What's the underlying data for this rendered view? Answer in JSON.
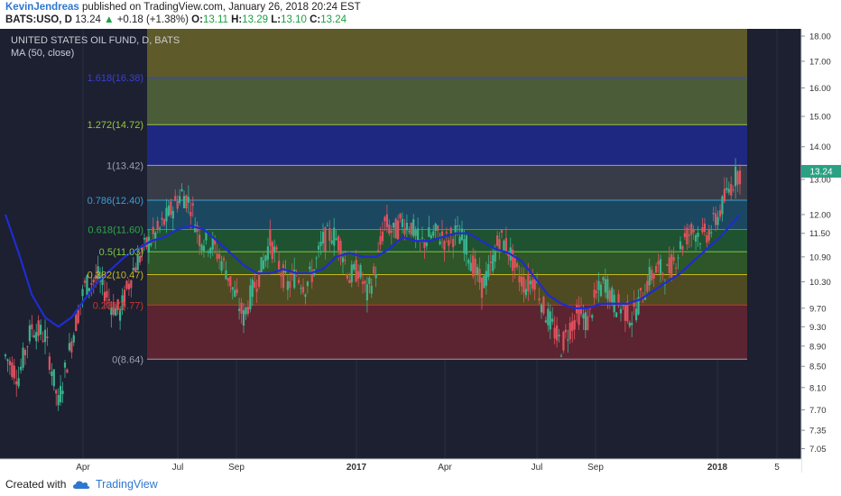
{
  "header": {
    "author": "KevinJendreas",
    "published": "published on TradingView.com, January 26, 2018 20:24 EST",
    "symbol": "BATS:USO, D",
    "last": "13.24",
    "change": "+0.18 (+1.38%)",
    "open_label": "O:",
    "open": "13.11",
    "high_label": "H:",
    "high": "13.29",
    "low_label": "L:",
    "low": "13.10",
    "close_label": "C:",
    "close": "13.24"
  },
  "footer": {
    "created": "Created with",
    "brand": "TradingView"
  },
  "colors": {
    "background": "#1c2030",
    "up_candle": "#3bb38f",
    "down_candle": "#e0525e",
    "ma_line": "#1f2ccf",
    "price_badge": "#2aa183"
  },
  "chart_data": {
    "type": "candlestick",
    "title": "UNITED STATES OIL FUND, D, BATS",
    "indicator_label": "MA (50, close)",
    "y_scale": "log",
    "ylim": [
      6.9,
      18.3
    ],
    "y_ticks": [
      "18.00",
      "17.00",
      "16.00",
      "15.00",
      "14.00",
      "13.00",
      "12.00",
      "11.50",
      "10.90",
      "10.30",
      "9.70",
      "9.30",
      "8.90",
      "8.50",
      "8.10",
      "7.70",
      "7.35",
      "7.05"
    ],
    "x_ticks": [
      "Apr",
      "Jul",
      "Sep",
      "2017",
      "Apr",
      "Jul",
      "Sep",
      "2018",
      "5"
    ],
    "last_price_label": "13.24",
    "fib_levels": [
      {
        "ratio": 0,
        "value": 8.64,
        "label": "0(8.64)",
        "color": "#9aa0ac"
      },
      {
        "ratio": 0.236,
        "value": 9.77,
        "label": "0.236(9.77)",
        "color": "#d0342c"
      },
      {
        "ratio": 0.382,
        "value": 10.47,
        "label": "0.382(10.47)",
        "color": "#c8b820"
      },
      {
        "ratio": 0.5,
        "value": 11.03,
        "label": "0.5(11.03)",
        "color": "#7cc94a"
      },
      {
        "ratio": 0.618,
        "value": 11.6,
        "label": "0.618(11.60)",
        "color": "#2ea84a"
      },
      {
        "ratio": 0.786,
        "value": 12.4,
        "label": "0.786(12.40)",
        "color": "#3d9fd6"
      },
      {
        "ratio": 1,
        "value": 13.42,
        "label": "1(13.42)",
        "color": "#9aa0ac"
      },
      {
        "ratio": 1.272,
        "value": 14.72,
        "label": "1.272(14.72)",
        "color": "#9ec53a"
      },
      {
        "ratio": 1.618,
        "value": 16.38,
        "label": "1.618(16.38)",
        "color": "#3b3fd1"
      }
    ],
    "fib_bands": [
      {
        "from": 8.64,
        "to": 9.77,
        "color": "#5c2330"
      },
      {
        "from": 9.77,
        "to": 10.47,
        "color": "#4e4a22"
      },
      {
        "from": 10.47,
        "to": 11.03,
        "color": "#2e5628"
      },
      {
        "from": 11.03,
        "to": 11.6,
        "color": "#1e5230"
      },
      {
        "from": 11.6,
        "to": 12.4,
        "color": "#1b4860"
      },
      {
        "from": 12.4,
        "to": 13.42,
        "color": "#383c48"
      },
      {
        "from": 13.42,
        "to": 14.72,
        "color": "#1e2880"
      },
      {
        "from": 14.72,
        "to": 16.38,
        "color": "#4a5c38"
      },
      {
        "from": 16.38,
        "to": 18.3,
        "color": "#5e5a2a"
      }
    ],
    "price_path": [
      [
        0,
        8.7
      ],
      [
        6,
        8.3
      ],
      [
        12,
        9.3
      ],
      [
        18,
        9.1
      ],
      [
        24,
        7.8
      ],
      [
        30,
        9.0
      ],
      [
        36,
        10.2
      ],
      [
        42,
        10.4
      ],
      [
        48,
        9.8
      ],
      [
        52,
        9.6
      ],
      [
        58,
        10.6
      ],
      [
        64,
        11.2
      ],
      [
        70,
        11.6
      ],
      [
        76,
        12.2
      ],
      [
        80,
        12.6
      ],
      [
        84,
        12.3
      ],
      [
        88,
        11.4
      ],
      [
        94,
        11.2
      ],
      [
        100,
        10.6
      ],
      [
        104,
        10.0
      ],
      [
        108,
        9.5
      ],
      [
        112,
        10.1
      ],
      [
        116,
        10.6
      ],
      [
        120,
        11.3
      ],
      [
        124,
        10.7
      ],
      [
        128,
        10.2
      ],
      [
        132,
        10.5
      ],
      [
        136,
        10.2
      ],
      [
        140,
        10.6
      ],
      [
        144,
        11.3
      ],
      [
        148,
        11.5
      ],
      [
        152,
        11.2
      ],
      [
        156,
        10.4
      ],
      [
        160,
        10.6
      ],
      [
        164,
        10.0
      ],
      [
        168,
        10.6
      ],
      [
        172,
        11.8
      ],
      [
        176,
        11.5
      ],
      [
        180,
        11.8
      ],
      [
        184,
        11.7
      ],
      [
        188,
        11.2
      ],
      [
        192,
        11.4
      ],
      [
        196,
        11.5
      ],
      [
        200,
        11.3
      ],
      [
        204,
        11.5
      ],
      [
        208,
        11.3
      ],
      [
        212,
        10.7
      ],
      [
        216,
        10.2
      ],
      [
        220,
        10.6
      ],
      [
        224,
        11.4
      ],
      [
        228,
        11.1
      ],
      [
        232,
        10.5
      ],
      [
        236,
        10.2
      ],
      [
        240,
        10.4
      ],
      [
        244,
        9.7
      ],
      [
        248,
        9.3
      ],
      [
        252,
        8.9
      ],
      [
        256,
        9.3
      ],
      [
        260,
        9.6
      ],
      [
        264,
        9.4
      ],
      [
        268,
        10.0
      ],
      [
        272,
        10.3
      ],
      [
        276,
        9.8
      ],
      [
        280,
        9.7
      ],
      [
        284,
        9.5
      ],
      [
        288,
        9.9
      ],
      [
        292,
        10.4
      ],
      [
        296,
        10.6
      ],
      [
        300,
        10.5
      ],
      [
        304,
        10.9
      ],
      [
        308,
        11.4
      ],
      [
        312,
        11.6
      ],
      [
        316,
        11.4
      ],
      [
        320,
        11.6
      ],
      [
        324,
        12.1
      ],
      [
        328,
        12.7
      ],
      [
        332,
        13.2
      ]
    ],
    "ma_path": [
      [
        0,
        12.0
      ],
      [
        6,
        11.0
      ],
      [
        12,
        10.0
      ],
      [
        18,
        9.5
      ],
      [
        24,
        9.3
      ],
      [
        30,
        9.5
      ],
      [
        36,
        9.9
      ],
      [
        42,
        10.3
      ],
      [
        48,
        10.6
      ],
      [
        54,
        10.9
      ],
      [
        60,
        11.1
      ],
      [
        66,
        11.3
      ],
      [
        72,
        11.4
      ],
      [
        78,
        11.6
      ],
      [
        84,
        11.7
      ],
      [
        90,
        11.6
      ],
      [
        96,
        11.3
      ],
      [
        102,
        11.0
      ],
      [
        108,
        10.7
      ],
      [
        114,
        10.5
      ],
      [
        120,
        10.5
      ],
      [
        126,
        10.6
      ],
      [
        132,
        10.5
      ],
      [
        138,
        10.5
      ],
      [
        144,
        10.6
      ],
      [
        150,
        10.9
      ],
      [
        156,
        11.0
      ],
      [
        162,
        10.9
      ],
      [
        168,
        10.9
      ],
      [
        174,
        11.1
      ],
      [
        180,
        11.4
      ],
      [
        186,
        11.3
      ],
      [
        192,
        11.3
      ],
      [
        198,
        11.4
      ],
      [
        204,
        11.5
      ],
      [
        210,
        11.5
      ],
      [
        216,
        11.3
      ],
      [
        222,
        11.1
      ],
      [
        228,
        11.0
      ],
      [
        234,
        10.8
      ],
      [
        240,
        10.4
      ],
      [
        246,
        10.0
      ],
      [
        252,
        9.8
      ],
      [
        258,
        9.7
      ],
      [
        264,
        9.7
      ],
      [
        270,
        9.8
      ],
      [
        276,
        9.8
      ],
      [
        282,
        9.8
      ],
      [
        288,
        9.9
      ],
      [
        294,
        10.1
      ],
      [
        300,
        10.3
      ],
      [
        306,
        10.5
      ],
      [
        312,
        10.8
      ],
      [
        318,
        11.1
      ],
      [
        324,
        11.4
      ],
      [
        330,
        11.8
      ],
      [
        333,
        12.0
      ]
    ]
  }
}
